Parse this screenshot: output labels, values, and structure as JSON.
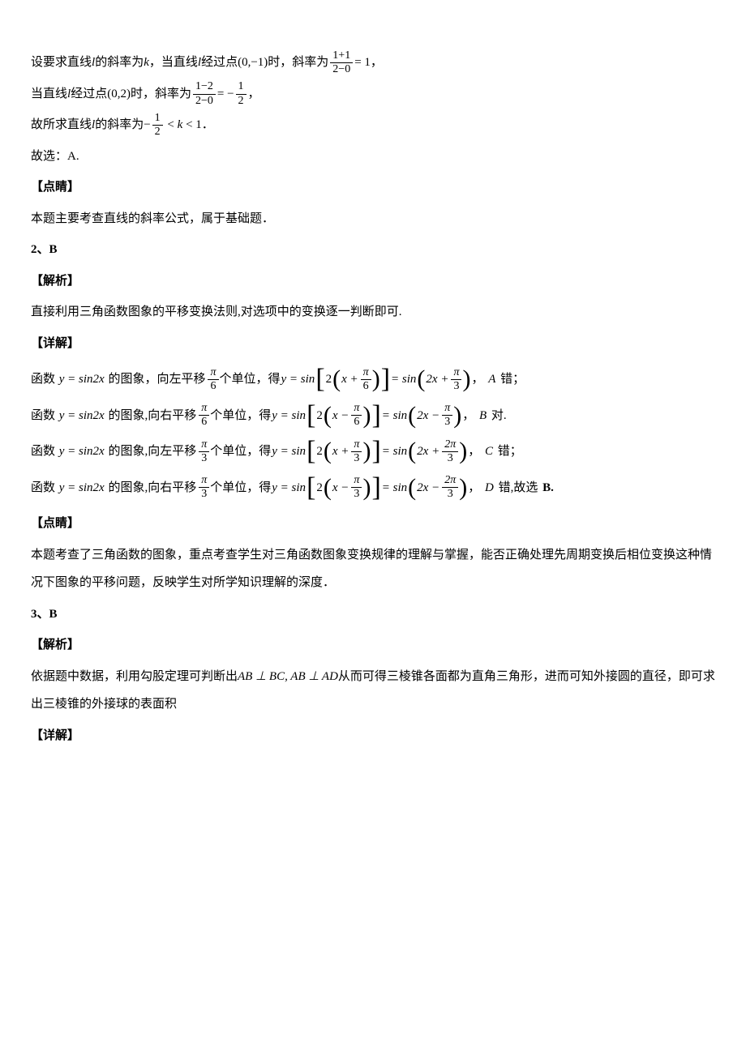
{
  "colors": {
    "text": "#000000",
    "background": "#ffffff"
  },
  "typography": {
    "body_fontsize_pt": 11,
    "line_height": 2.3,
    "font_family": "SimSun"
  },
  "p1": {
    "t1": "设要求直线",
    "t2": "的斜率为",
    "t3": "，当直线",
    "t4": "经过点",
    "t5": "时，斜率为",
    "t6": "，",
    "l": "l",
    "k": "k",
    "pt1": "(0,−1)",
    "frac1_num": "1+1",
    "frac1_den": "2−0",
    "eq1": "= 1"
  },
  "p2": {
    "t1": "当直线",
    "t2": "经过点",
    "t3": "时，斜率为",
    "t4": "，",
    "l": "l",
    "pt": "(0,2)",
    "frac_num": "1−2",
    "frac_den": "2−0",
    "eq": "= −",
    "half_num": "1",
    "half_den": "2"
  },
  "p3": {
    "t1": "故所求直线",
    "t2": "的斜率为",
    "t3": "．",
    "l": "l",
    "neg": "−",
    "half_num": "1",
    "half_den": "2",
    "ineq": "< k < 1",
    "lt": "<",
    "k": "k",
    "one": "1"
  },
  "p4": "故选：A.",
  "h1": "【点睛】",
  "p5": "本题主要考查直线的斜率公式，属于基础题．",
  "q2": "2、B",
  "h2": "【解析】",
  "p6": "直接利用三角函数图象的平移变换法则,对选项中的变换逐一判断即可.",
  "h3": "【详解】",
  "eqA": {
    "t1": "函数",
    "fn": "y = sin2x",
    "t2": "的图象，向左平移",
    "shift_num": "π",
    "shift_den": "6",
    "t3": "个单位，得",
    "y_eq": "y = sin",
    "two": "2",
    "x_plus": "x +",
    "inner_num": "π",
    "inner_den": "6",
    "eq": "= sin",
    "res_pre": "2x +",
    "res_num": "π",
    "res_den": "3",
    "t4": "，",
    "opt": "A",
    "t5": "错；"
  },
  "eqB": {
    "t1": "函数",
    "fn": "y = sin2x",
    "t2": "的图象,向右平移",
    "shift_num": "π",
    "shift_den": "6",
    "t3": "个单位，得",
    "y_eq": "y = sin",
    "two": "2",
    "x_minus": "x −",
    "inner_num": "π",
    "inner_den": "6",
    "eq": "= sin",
    "res_pre": "2x −",
    "res_num": "π",
    "res_den": "3",
    "t4": "，",
    "opt": "B",
    "t5": "对."
  },
  "eqC": {
    "t1": "函数",
    "fn": "y = sin2x",
    "t2": "的图象,向左平移",
    "shift_num": "π",
    "shift_den": "3",
    "t3": "个单位，得",
    "y_eq": "y = sin",
    "two": "2",
    "x_plus": "x +",
    "inner_num": "π",
    "inner_den": "3",
    "eq": "= sin",
    "res_pre": "2x +",
    "res_num": "2π",
    "res_den": "3",
    "t4": "，",
    "opt": "C",
    "t5": "错；"
  },
  "eqD": {
    "t1": "函数",
    "fn": "y = sin2x",
    "t2": "的图象,向右平移",
    "shift_num": "π",
    "shift_den": "3",
    "t3": "个单位，得",
    "y_eq": "y = sin",
    "two": "2",
    "x_minus": "x −",
    "inner_num": "π",
    "inner_den": "3",
    "eq": "= sin",
    "res_pre": "2x −",
    "res_num": "2π",
    "res_den": "3",
    "t4": "，",
    "opt": "D",
    "t5a": "错,故选",
    "t5b": "B."
  },
  "h4": "【点睛】",
  "p7": "本题考查了三角函数的图象，重点考查学生对三角函数图象变换规律的理解与掌握，能否正确处理先周期变换后相位变换这种情况下图象的平移问题，反映学生对所学知识理解的深度．",
  "q3": "3、B",
  "h5": "【解析】",
  "p8a": "依据题中数据，利用勾股定理可判断出",
  "p8m": "AB ⊥ BC, AB ⊥ AD",
  "p8b": "从而可得三棱锥各面都为直角三角形，进而可知外接圆的直径，即可求出三棱锥的外接球的表面积",
  "h6": "【详解】"
}
